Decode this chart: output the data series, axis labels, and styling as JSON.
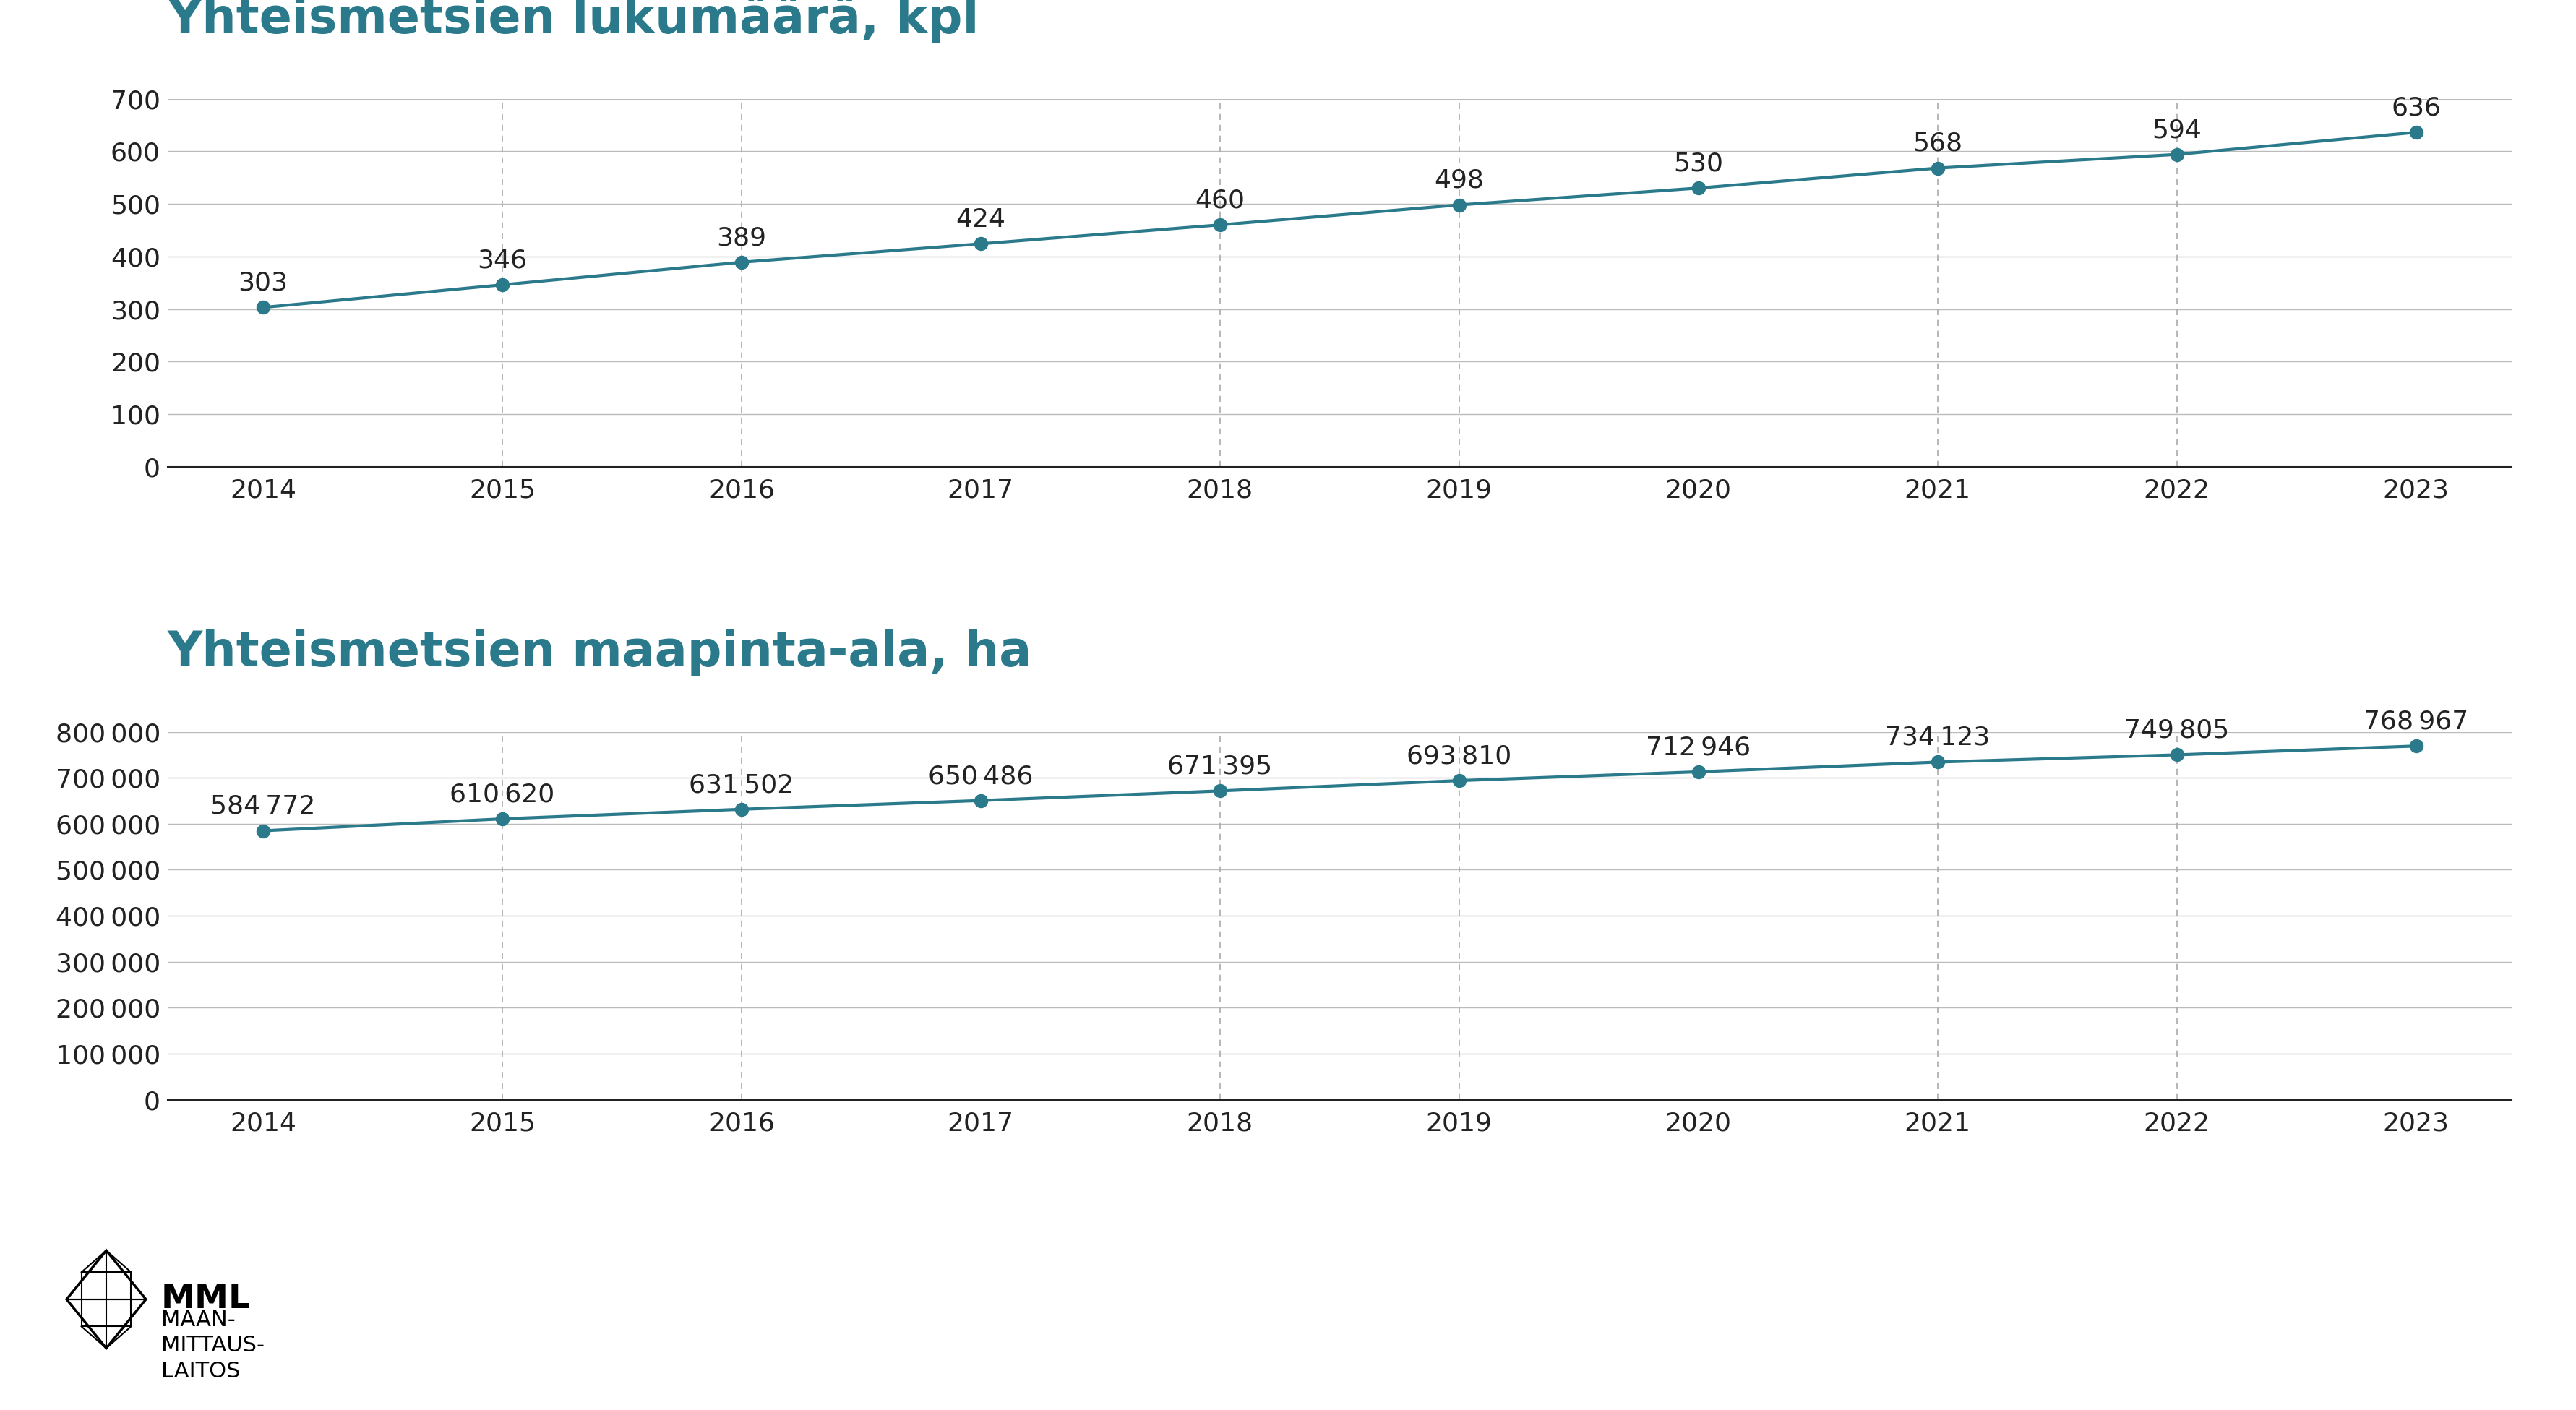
{
  "title1_bold": "Yhteismetsien lukumäärä,",
  "title1_light": " kpl",
  "title2_bold": "Yhteismetsien maapinta-ala,",
  "title2_light": " ha",
  "years": [
    2014,
    2015,
    2016,
    2017,
    2018,
    2019,
    2020,
    2021,
    2022,
    2023
  ],
  "count_values": [
    303,
    346,
    389,
    424,
    460,
    498,
    530,
    568,
    594,
    636
  ],
  "area_values": [
    584772,
    610620,
    631502,
    650486,
    671395,
    693810,
    712946,
    734123,
    749805,
    768967
  ],
  "area_labels": [
    "584 772",
    "610 620",
    "631 502",
    "650 486",
    "671 395",
    "693 810",
    "712 946",
    "734 123",
    "749 805",
    "768 967"
  ],
  "line_color": "#2b7a8b",
  "title_color": "#2b7a8b",
  "title_light_color": "#2b7a8b",
  "axis_color": "#222222",
  "grid_h_color": "#bbbbbb",
  "grid_v_color": "#aaaaaa",
  "bg_color": "#ffffff",
  "count_ylim": [
    0,
    700
  ],
  "count_yticks": [
    0,
    100,
    200,
    300,
    400,
    500,
    600,
    700
  ],
  "area_ylim": [
    0,
    800000
  ],
  "area_yticks": [
    0,
    100000,
    200000,
    300000,
    400000,
    500000,
    600000,
    700000,
    800000
  ],
  "area_ytick_labels": [
    "0",
    "100 000",
    "200 000",
    "300 000",
    "400 000",
    "500 000",
    "600 000",
    "700 000",
    "800 000"
  ],
  "title_fontsize": 48,
  "tick_fontsize": 26,
  "annotation_fontsize": 26,
  "linewidth": 3.0,
  "markersize": 13,
  "dashed_years": [
    2015,
    2016,
    2018,
    2019,
    2021,
    2022
  ]
}
